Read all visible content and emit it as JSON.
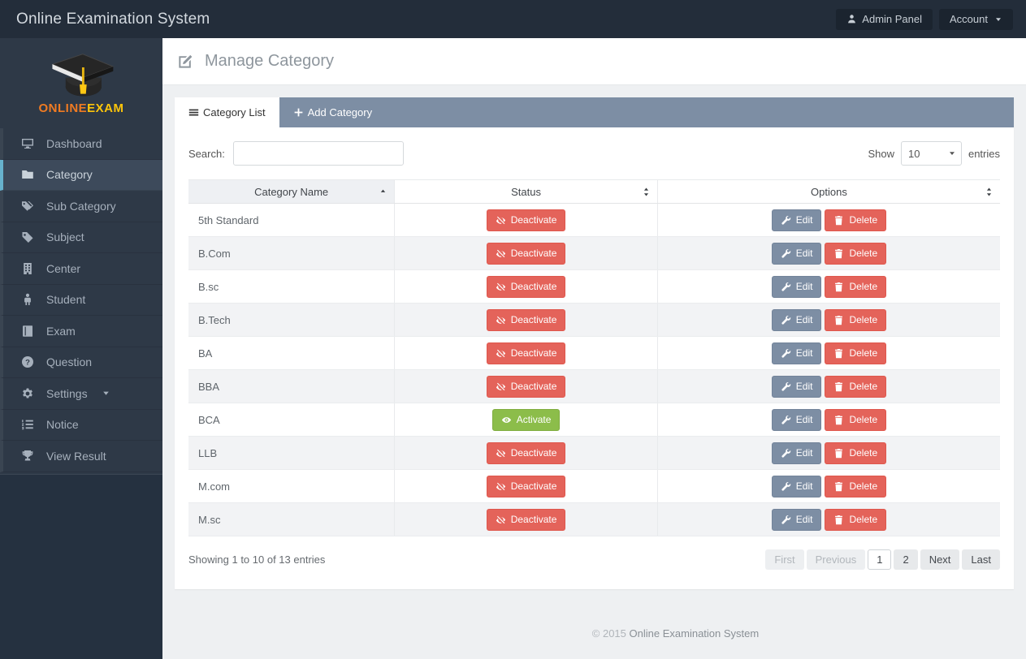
{
  "topbar": {
    "title": "Online Examination System",
    "admin_panel_label": "Admin Panel",
    "account_label": "Account"
  },
  "sidebar": {
    "logo": {
      "part1": "ONLINE",
      "part2": "EXAM"
    },
    "items": [
      {
        "label": "Dashboard",
        "icon": "desktop-icon",
        "active": false,
        "caret": false
      },
      {
        "label": "Category",
        "icon": "folder-icon",
        "active": true,
        "caret": false
      },
      {
        "label": "Sub Category",
        "icon": "tags-icon",
        "active": false,
        "caret": false
      },
      {
        "label": "Subject",
        "icon": "tag-icon",
        "active": false,
        "caret": false
      },
      {
        "label": "Center",
        "icon": "building-icon",
        "active": false,
        "caret": false
      },
      {
        "label": "Student",
        "icon": "male-icon",
        "active": false,
        "caret": false
      },
      {
        "label": "Exam",
        "icon": "book-icon",
        "active": false,
        "caret": false
      },
      {
        "label": "Question",
        "icon": "question-circle-icon",
        "active": false,
        "caret": false
      },
      {
        "label": "Settings",
        "icon": "cogs-icon",
        "active": false,
        "caret": true
      },
      {
        "label": "Notice",
        "icon": "list-ol-icon",
        "active": false,
        "caret": false
      },
      {
        "label": "View Result",
        "icon": "trophy-icon",
        "active": false,
        "caret": false
      }
    ]
  },
  "page": {
    "title": "Manage Category",
    "title_icon": "pencil-square-icon"
  },
  "tabs": [
    {
      "label": "Category List",
      "icon": "list-icon",
      "active": true
    },
    {
      "label": "Add Category",
      "icon": "plus-icon",
      "active": false
    }
  ],
  "toolbar": {
    "search_label": "Search:",
    "search_value": "",
    "show_label": "Show",
    "page_size": "10",
    "entries_label": "entries"
  },
  "table": {
    "columns": [
      {
        "label": "Category Name",
        "sort": "asc"
      },
      {
        "label": "Status",
        "sort": "both"
      },
      {
        "label": "Options",
        "sort": "both"
      }
    ],
    "row_actions": {
      "edit": "Edit",
      "delete": "Delete"
    },
    "rows": [
      {
        "name": "5th Standard",
        "status": {
          "label": "Deactivate",
          "type": "deactivate"
        }
      },
      {
        "name": "B.Com",
        "status": {
          "label": "Deactivate",
          "type": "deactivate"
        }
      },
      {
        "name": "B.sc",
        "status": {
          "label": "Deactivate",
          "type": "deactivate"
        }
      },
      {
        "name": "B.Tech",
        "status": {
          "label": "Deactivate",
          "type": "deactivate"
        }
      },
      {
        "name": "BA",
        "status": {
          "label": "Deactivate",
          "type": "deactivate"
        }
      },
      {
        "name": "BBA",
        "status": {
          "label": "Deactivate",
          "type": "deactivate"
        }
      },
      {
        "name": "BCA",
        "status": {
          "label": "Activate",
          "type": "activate"
        }
      },
      {
        "name": "LLB",
        "status": {
          "label": "Deactivate",
          "type": "deactivate"
        }
      },
      {
        "name": "M.com",
        "status": {
          "label": "Deactivate",
          "type": "deactivate"
        }
      },
      {
        "name": "M.sc",
        "status": {
          "label": "Deactivate",
          "type": "deactivate"
        }
      }
    ]
  },
  "table_footer": {
    "showing_info": "Showing 1 to 10 of 13 entries",
    "pagination": [
      {
        "label": "First",
        "state": "disabled"
      },
      {
        "label": "Previous",
        "state": "disabled"
      },
      {
        "label": "1",
        "state": "active"
      },
      {
        "label": "2",
        "state": "normal"
      },
      {
        "label": "Next",
        "state": "normal"
      },
      {
        "label": "Last",
        "state": "normal"
      }
    ]
  },
  "page_footer": {
    "copyright": "© 2015",
    "brand": "Online Examination System"
  },
  "colors": {
    "topbar_bg": "#232d3a",
    "sidebar_bg": "#2e3947",
    "active_accent": "#67b2cd",
    "tab_bar": "#7d8ea4",
    "danger": "#e4635a",
    "success": "#8cbd4a",
    "logo_orange": "#f07b22",
    "logo_yellow": "#fdc50a"
  }
}
